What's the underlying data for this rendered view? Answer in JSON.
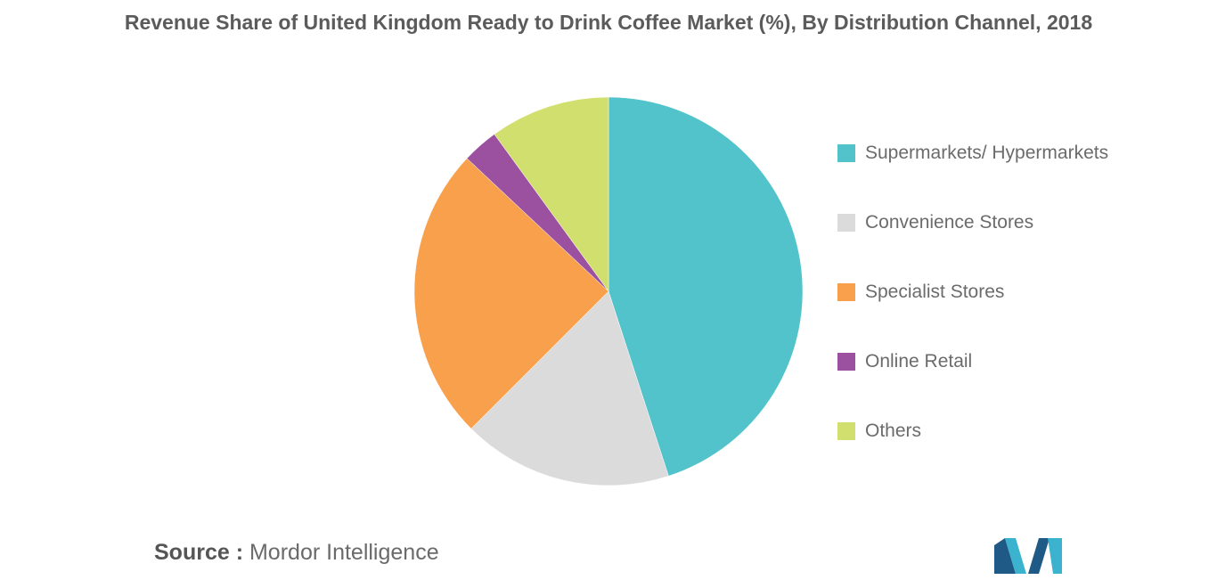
{
  "chart_data": {
    "type": "pie",
    "title": "Revenue Share of United Kingdom Ready to Drink Coffee Market (%), By Distribution Channel, 2018",
    "categories": [
      "Supermarkets/ Hypermarkets",
      "Convenience Stores",
      "Specialist Stores",
      "Online Retail",
      "Others"
    ],
    "values": [
      45,
      17.5,
      24.5,
      3,
      10
    ],
    "colors": [
      "#52c3ca",
      "#dbdbdb",
      "#f9a04c",
      "#9b50a0",
      "#d0df6e"
    ],
    "legend_position": "right",
    "start_angle": "12 o'clock",
    "direction": "clockwise"
  },
  "source": {
    "key": "Source :",
    "value": "Mordor Intelligence"
  },
  "logo": {
    "icon": "mordor-intelligence-logo-icon",
    "colors": [
      "#1f5a86",
      "#3bb3cf"
    ]
  }
}
